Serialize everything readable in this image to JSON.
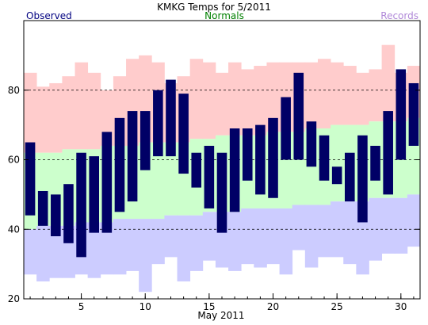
{
  "chart_data": {
    "type": "bar",
    "title": "KMKG Temps for 5/2011",
    "xlabel": "May 2011",
    "ylabel": "",
    "legend": {
      "observed": "Observed",
      "normals": "Normals",
      "records": "Records"
    },
    "ylim": [
      20,
      100
    ],
    "xlim": [
      0.5,
      31.5
    ],
    "yticks": [
      20,
      40,
      60,
      80
    ],
    "xticks": [
      5,
      10,
      15,
      20,
      25,
      30
    ],
    "gridlines_y": [
      40,
      60,
      80
    ],
    "colors": {
      "observed": "#000066",
      "normals": "#ccffcc",
      "record_high": "#ffcccc",
      "record_low": "#ccccff",
      "observed_label": "#000080",
      "normals_label": "#008000",
      "records_label": "#b088d8"
    },
    "days": [
      1,
      2,
      3,
      4,
      5,
      6,
      7,
      8,
      9,
      10,
      11,
      12,
      13,
      14,
      15,
      16,
      17,
      18,
      19,
      20,
      21,
      22,
      23,
      24,
      25,
      26,
      27,
      28,
      29,
      30,
      31
    ],
    "series": [
      {
        "name": "Records",
        "role": "record_high",
        "values": [
          85,
          81,
          82,
          84,
          88,
          85,
          80,
          84,
          89,
          90,
          88,
          82,
          84,
          89,
          88,
          85,
          88,
          86,
          87,
          88,
          88,
          88,
          88,
          89,
          88,
          87,
          85,
          86,
          93,
          85,
          87
        ]
      },
      {
        "name": "Normals",
        "role": "normal_high",
        "values": [
          62,
          62,
          62,
          63,
          63,
          63,
          64,
          64,
          64,
          65,
          65,
          65,
          65,
          66,
          66,
          67,
          67,
          67,
          67,
          68,
          68,
          68,
          69,
          69,
          70,
          70,
          70,
          71,
          71,
          71,
          72
        ]
      },
      {
        "name": "Normals",
        "role": "normal_low",
        "values": [
          40,
          41,
          41,
          41,
          42,
          42,
          42,
          43,
          43,
          43,
          43,
          44,
          44,
          44,
          45,
          45,
          45,
          46,
          46,
          46,
          46,
          47,
          47,
          47,
          48,
          48,
          48,
          49,
          49,
          49,
          50
        ]
      },
      {
        "name": "Records",
        "role": "record_low",
        "values": [
          27,
          25,
          26,
          26,
          27,
          26,
          27,
          27,
          28,
          22,
          30,
          32,
          25,
          28,
          31,
          29,
          28,
          30,
          29,
          30,
          27,
          34,
          29,
          32,
          32,
          30,
          27,
          31,
          33,
          33,
          35
        ]
      },
      {
        "name": "Observed",
        "role": "observed_high",
        "values": [
          65,
          51,
          50,
          53,
          62,
          61,
          68,
          72,
          74,
          74,
          80,
          83,
          79,
          62,
          64,
          62,
          69,
          69,
          70,
          72,
          78,
          85,
          71,
          67,
          58,
          62,
          67,
          64,
          74,
          86,
          82
        ]
      },
      {
        "name": "Observed",
        "role": "observed_low",
        "values": [
          44,
          41,
          38,
          36,
          32,
          39,
          39,
          45,
          48,
          57,
          61,
          61,
          56,
          52,
          46,
          39,
          45,
          54,
          50,
          49,
          60,
          60,
          58,
          54,
          53,
          48,
          42,
          54,
          50,
          60,
          64
        ]
      }
    ]
  }
}
